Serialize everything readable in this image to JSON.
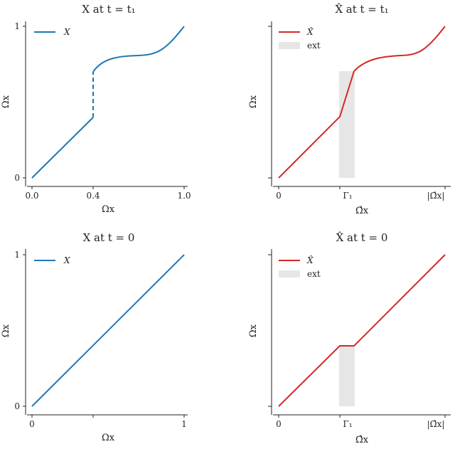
{
  "colors": {
    "blue": "#1f77b4",
    "red": "#d62728",
    "ext_fill": "#e6e6e6",
    "axis": "#222222"
  },
  "chart_data": [
    {
      "type": "line",
      "title": "X at t = t₁",
      "xlabel": "Ωx",
      "ylabel": "Ωx",
      "xlim": [
        0,
        1
      ],
      "ylim": [
        0,
        1
      ],
      "x_ticks": [
        "0.0",
        "0.4",
        "1.0"
      ],
      "y_ticks": [
        "0",
        "1"
      ],
      "grid": false,
      "legend_position": "top-left",
      "series": [
        {
          "name": "X",
          "x": [
            0,
            0.1,
            0.2,
            0.3,
            0.4,
            0.4,
            0.45,
            0.5,
            0.55,
            0.6,
            0.65,
            0.7,
            0.75,
            0.8,
            0.85,
            0.9,
            0.95,
            1.0
          ],
          "y": [
            0,
            0.1,
            0.2,
            0.3,
            0.4,
            0.7,
            0.75,
            0.78,
            0.795,
            0.8,
            0.802,
            0.805,
            0.81,
            0.83,
            0.87,
            0.92,
            0.96,
            1.0
          ],
          "dashed_segment": [
            0.4,
            0.4,
            0.7
          ]
        }
      ]
    },
    {
      "type": "line",
      "title": "X̂ at t = t₁",
      "xlabel": "Ω̂x",
      "ylabel": "Ωx",
      "x_ticks": [
        "0",
        "Γ₁",
        "|Ω̂x|"
      ],
      "grid": false,
      "legend_position": "top-left",
      "series": [
        {
          "name": "X̂",
          "x": [
            0,
            0.2,
            0.4,
            0.5,
            0.55,
            0.6,
            0.65,
            0.7,
            0.75,
            0.8,
            0.85,
            0.9,
            0.95,
            1.0
          ],
          "y": [
            0,
            0.2,
            0.4,
            0.7,
            0.75,
            0.78,
            0.795,
            0.8,
            0.803,
            0.81,
            0.83,
            0.87,
            0.93,
            1.0
          ]
        },
        {
          "name": "ext",
          "type": "band",
          "x_range": [
            0.4,
            0.5
          ],
          "y_range": [
            0,
            0.7
          ]
        }
      ]
    },
    {
      "type": "line",
      "title": "X at t = 0",
      "xlabel": "Ωx",
      "ylabel": "Ωx",
      "xlim": [
        0,
        1
      ],
      "ylim": [
        0,
        1
      ],
      "x_ticks": [
        "0",
        "1"
      ],
      "y_ticks": [
        "0",
        "1"
      ],
      "grid": false,
      "legend_position": "top-left",
      "series": [
        {
          "name": "X",
          "x": [
            0,
            1
          ],
          "y": [
            0,
            1
          ]
        }
      ]
    },
    {
      "type": "line",
      "title": "X̂ at t = 0",
      "xlabel": "Ω̂x",
      "ylabel": "Ωx",
      "x_ticks": [
        "0",
        "Γ₁",
        "|Ω̂x|"
      ],
      "grid": false,
      "legend_position": "top-left",
      "series": [
        {
          "name": "X̂",
          "x": [
            0,
            0.4,
            0.5,
            1.0
          ],
          "y": [
            0,
            0.4,
            0.4,
            1.0
          ]
        },
        {
          "name": "ext",
          "type": "band",
          "x_range": [
            0.4,
            0.5
          ],
          "y_range": [
            0,
            0.4
          ]
        }
      ]
    }
  ]
}
